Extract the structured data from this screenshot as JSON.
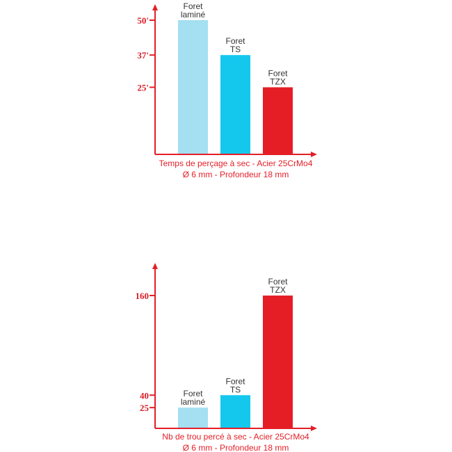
{
  "chart_data": [
    {
      "type": "bar",
      "title": "",
      "caption_lines": [
        "Temps de perçage à sec - Acier 25CrMo4",
        "Ø 6 mm - Profondeur 18 mm"
      ],
      "categories": [
        [
          "Foret",
          "laminé"
        ],
        [
          "Foret",
          "TS"
        ],
        [
          "Foret",
          "TZX"
        ]
      ],
      "values": [
        50,
        37,
        25
      ],
      "colors": [
        "#a4dff2",
        "#14c8ed",
        "#e51e25"
      ],
      "ticks": [
        {
          "value": 50,
          "label": "50'"
        },
        {
          "value": 37,
          "label": "37'"
        },
        {
          "value": 25,
          "label": "25'"
        }
      ],
      "ylim": [
        0,
        55
      ],
      "xlabel": "",
      "ylabel": ""
    },
    {
      "type": "bar",
      "title": "",
      "caption_lines": [
        "Nb de trou percé à sec - Acier 25CrMo4",
        "Ø 6 mm - Profondeur 18 mm"
      ],
      "categories": [
        [
          "Foret",
          "laminé"
        ],
        [
          "Foret",
          "TS"
        ],
        [
          "Foret",
          "TZX"
        ]
      ],
      "values": [
        25,
        40,
        160
      ],
      "colors": [
        "#a4dff2",
        "#14c8ed",
        "#e51e25"
      ],
      "ticks": [
        {
          "value": 160,
          "label": "160"
        },
        {
          "value": 40,
          "label": "40"
        },
        {
          "value": 25,
          "label": "25"
        }
      ],
      "ylim": [
        0,
        200
      ],
      "xlabel": "",
      "ylabel": ""
    }
  ]
}
